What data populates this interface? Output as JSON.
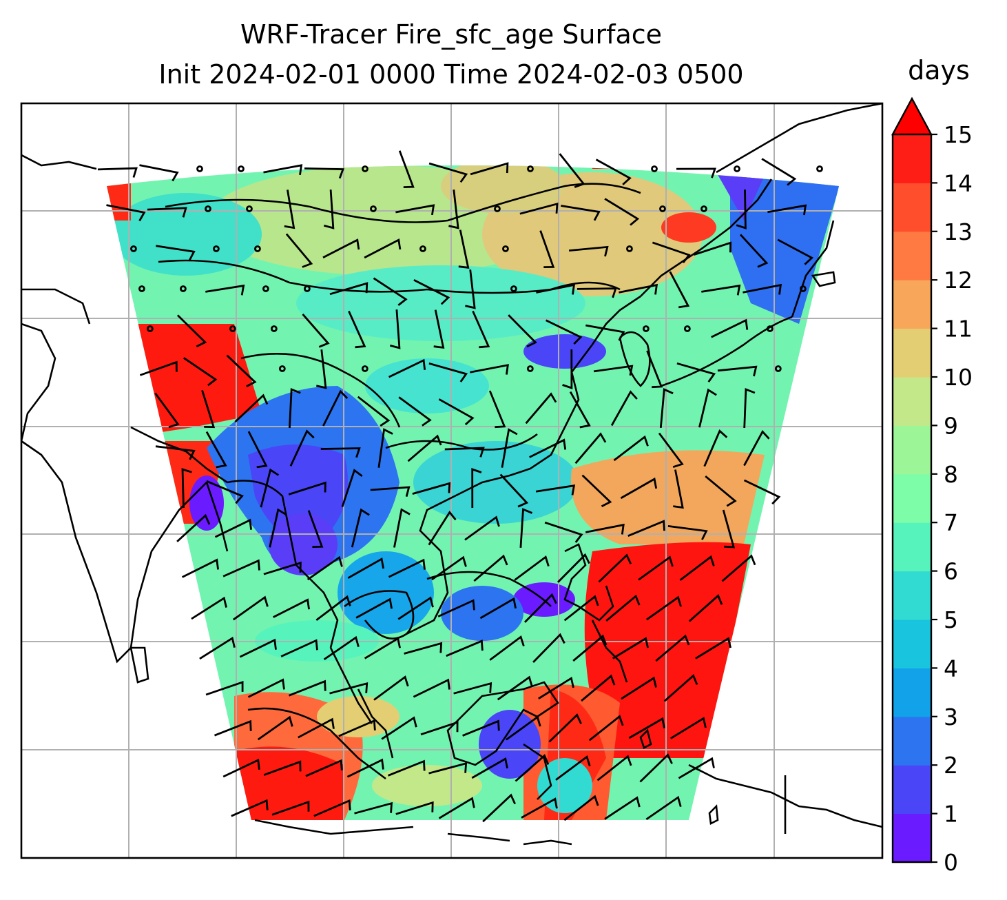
{
  "title": {
    "line1": "WRF-Tracer Fire_sfc_age Surface",
    "line2": "Init 2024-02-01 0000 Time 2024-02-03 0500"
  },
  "colorbar": {
    "label": "days",
    "min": 0,
    "max": 15,
    "extend": "max",
    "ticks": [
      "0",
      "1",
      "2",
      "3",
      "4",
      "5",
      "6",
      "7",
      "8",
      "9",
      "10",
      "11",
      "12",
      "13",
      "14",
      "15"
    ],
    "colors": [
      "#6a1bff",
      "#4a46f8",
      "#2d74f0",
      "#11a2ea",
      "#18c4de",
      "#32dbd2",
      "#57f3bd",
      "#7dfda8",
      "#9cf596",
      "#c3e88a",
      "#e3ce74",
      "#f8a75a",
      "#ff7a43",
      "#ff4e2c",
      "#fe1e15",
      "#ff0000"
    ]
  },
  "map": {
    "field": "Fire_sfc_age",
    "units": "days",
    "gridlines": true,
    "overlays": [
      "coastlines",
      "wind barbs"
    ]
  }
}
